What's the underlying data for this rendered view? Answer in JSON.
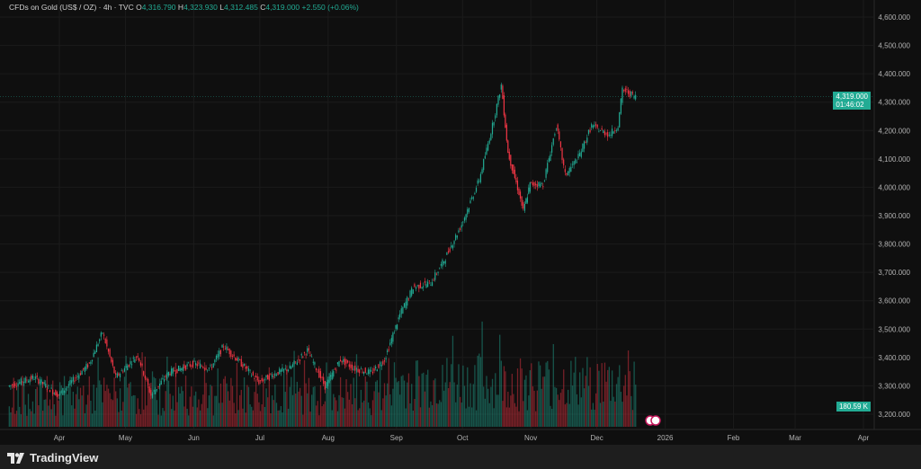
{
  "header": {
    "symbol": "CFDs on Gold (US$ / OZ) · 4h · TVC",
    "open_label": "O",
    "open": "4,316.790",
    "high_label": "H",
    "high": "4,323.930",
    "low_label": "L",
    "low": "4,312.485",
    "close_label": "C",
    "close": "4,319.000",
    "change": "+2.550 (+0.06%)"
  },
  "price_tag": {
    "price": "4,319.000",
    "countdown": "01:46:02"
  },
  "volume_tag": "180.59 K",
  "brand": "TradingView",
  "colors": {
    "up": "#22ab94",
    "down": "#f23645",
    "background": "#0f0f0f"
  },
  "chart_data": {
    "type": "candlestick",
    "title": "CFDs on Gold (US$ / OZ) · 4h · TVC",
    "ylim": [
      3200,
      4600
    ],
    "y_ticks": [
      "4,600.000",
      "4,500.000",
      "4,400.000",
      "4,300.000",
      "4,200.000",
      "4,100.000",
      "4,000.000",
      "3,900.000",
      "3,800.000",
      "3,700.000",
      "3,600.000",
      "3,500.000",
      "3,400.000",
      "3,300.000",
      "3,200.000"
    ],
    "x_ticks": [
      {
        "label": "Apr",
        "date": "2025-04-01"
      },
      {
        "label": "May",
        "date": "2025-05-01"
      },
      {
        "label": "Jun",
        "date": "2025-06-01"
      },
      {
        "label": "Jul",
        "date": "2025-07-01"
      },
      {
        "label": "Aug",
        "date": "2025-08-01"
      },
      {
        "label": "Sep",
        "date": "2025-09-01"
      },
      {
        "label": "Oct",
        "date": "2025-10-01"
      },
      {
        "label": "Nov",
        "date": "2025-11-01"
      },
      {
        "label": "Dec",
        "date": "2025-12-01"
      },
      {
        "label": "2026",
        "date": "2026-01-01"
      },
      {
        "label": "Feb",
        "date": "2026-02-01"
      },
      {
        "label": "Mar",
        "date": "2026-03-01"
      },
      {
        "label": "Apr",
        "date": "2026-04-01"
      }
    ],
    "approx_price_path": [
      [
        "2025-03-09",
        3298
      ],
      [
        "2025-03-21",
        3330
      ],
      [
        "2025-04-01",
        3267
      ],
      [
        "2025-04-15",
        3378
      ],
      [
        "2025-04-21",
        3489
      ],
      [
        "2025-04-27",
        3330
      ],
      [
        "2025-05-07",
        3409
      ],
      [
        "2025-05-13",
        3267
      ],
      [
        "2025-05-21",
        3346
      ],
      [
        "2025-06-01",
        3378
      ],
      [
        "2025-06-09",
        3362
      ],
      [
        "2025-06-15",
        3441
      ],
      [
        "2025-06-23",
        3378
      ],
      [
        "2025-07-01",
        3314
      ],
      [
        "2025-07-09",
        3346
      ],
      [
        "2025-07-15",
        3362
      ],
      [
        "2025-07-23",
        3425
      ],
      [
        "2025-07-31",
        3298
      ],
      [
        "2025-08-07",
        3393
      ],
      [
        "2025-08-13",
        3362
      ],
      [
        "2025-08-21",
        3346
      ],
      [
        "2025-08-27",
        3393
      ],
      [
        "2025-09-03",
        3552
      ],
      [
        "2025-09-09",
        3647
      ],
      [
        "2025-09-17",
        3663
      ],
      [
        "2025-09-23",
        3742
      ],
      [
        "2025-10-01",
        3869
      ],
      [
        "2025-10-09",
        4027
      ],
      [
        "2025-10-15",
        4217
      ],
      [
        "2025-10-19",
        4360
      ],
      [
        "2025-10-22",
        4122
      ],
      [
        "2025-10-27",
        3980
      ],
      [
        "2025-10-29",
        3916
      ],
      [
        "2025-11-01",
        4011
      ],
      [
        "2025-11-07",
        4011
      ],
      [
        "2025-11-13",
        4217
      ],
      [
        "2025-11-17",
        4043
      ],
      [
        "2025-11-23",
        4106
      ],
      [
        "2025-11-29",
        4217
      ],
      [
        "2025-12-07",
        4185
      ],
      [
        "2025-12-11",
        4217
      ],
      [
        "2025-12-13",
        4344
      ],
      [
        "2025-12-17",
        4328
      ],
      [
        "2025-12-19",
        4319
      ]
    ],
    "last_price": 4319.0,
    "volume_last": "180.59 K",
    "grid": true
  }
}
